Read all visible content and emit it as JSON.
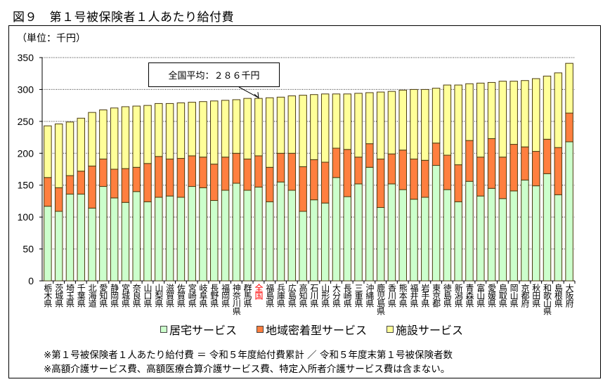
{
  "title": "図９　第１号被保険者１人あたり給付費",
  "chart_data": {
    "type": "bar",
    "stacked": true,
    "unit_label": "（単位：千円）",
    "ylim": [
      0,
      350
    ],
    "yticks": [
      0,
      50,
      100,
      150,
      200,
      250,
      300,
      350
    ],
    "grid": true,
    "legend_position": "bottom",
    "categories": [
      "栃木県",
      "茨城県",
      "埼玉県",
      "千葉県",
      "北海道",
      "愛知県",
      "静岡県",
      "宮城県",
      "奈良県",
      "山口県",
      "山梨県",
      "滋賀県",
      "佐賀県",
      "宮崎県",
      "岐阜県",
      "長野県",
      "福岡県",
      "神奈川県",
      "群馬県",
      "全国",
      "福島県",
      "兵庫県",
      "広島県",
      "高知県",
      "石川県",
      "山形県",
      "大分県",
      "長崎県",
      "三重県",
      "沖縄県",
      "鹿児島県",
      "香川県",
      "熊本県",
      "福井県",
      "岩手県",
      "東京都",
      "徳島県",
      "新潟県",
      "青森県",
      "富山県",
      "愛媛県",
      "鳥取県",
      "岡山県",
      "京都府",
      "秋田県",
      "和歌山県",
      "島根県",
      "大阪府"
    ],
    "highlight_category": "全国",
    "highlight_color": "#ff0000",
    "series": [
      {
        "name": "居宅サービス",
        "color": "#ccffcc",
        "values": [
          117,
          109,
          136,
          136,
          114,
          148,
          130,
          123,
          140,
          124,
          131,
          133,
          131,
          148,
          146,
          126,
          142,
          153,
          142,
          147,
          124,
          155,
          142,
          109,
          127,
          122,
          162,
          132,
          152,
          178,
          115,
          152,
          143,
          128,
          131,
          181,
          143,
          124,
          156,
          133,
          145,
          129,
          141,
          158,
          149,
          168,
          135,
          218
        ]
      },
      {
        "name": "地域密着型サービス",
        "color": "#ff7f3f",
        "values": [
          45,
          37,
          29,
          36,
          66,
          43,
          45,
          53,
          38,
          60,
          64,
          58,
          61,
          48,
          48,
          57,
          52,
          47,
          49,
          49,
          54,
          45,
          58,
          70,
          63,
          64,
          46,
          74,
          42,
          37,
          76,
          47,
          62,
          63,
          58,
          35,
          54,
          58,
          64,
          61,
          78,
          65,
          73,
          52,
          54,
          54,
          74,
          45
        ]
      },
      {
        "name": "施設サービス",
        "color": "#ffff99",
        "values": [
          81,
          100,
          84,
          83,
          84,
          77,
          96,
          97,
          96,
          91,
          83,
          87,
          87,
          84,
          87,
          99,
          89,
          84,
          95,
          90,
          109,
          88,
          90,
          112,
          102,
          107,
          85,
          87,
          100,
          80,
          105,
          98,
          94,
          109,
          111,
          86,
          110,
          125,
          89,
          116,
          88,
          119,
          99,
          104,
          114,
          99,
          117,
          78
        ]
      }
    ],
    "annotation": "全国平均：２８６千円"
  },
  "notes": [
    "※第１号被保険者１人あたり給付費 ＝ 令和５年度給付費累計 ／ 令和５年度末第１号被保険者数",
    "※高額介護サービス費、高額医療合算介護サービス費、特定入所者介護サービス費は含まない。"
  ]
}
